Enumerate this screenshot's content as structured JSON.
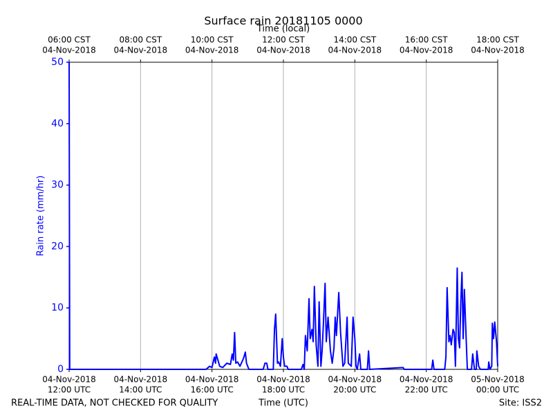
{
  "chart_data": {
    "type": "line",
    "title": "Surface rain 20181105 0000",
    "x_label": "Time (UTC)",
    "x2_label": "Time (local)",
    "y_label": "Rain rate (mm/hr)",
    "annotations": [
      "REAL-TIME DATA, NOT CHECKED FOR QUALITY",
      "Site: ISS2"
    ],
    "color": "#0000ff",
    "axis_color": "#0000ff",
    "grid": true,
    "xlim": [
      "2018-11-04 12:00",
      "2018-11-05 00:00"
    ],
    "ylim": [
      0,
      50
    ],
    "yticks": [
      0,
      10,
      20,
      30,
      40,
      50
    ],
    "xticks": [
      {
        "value": "2018-11-04 12:00",
        "label": [
          "04-Nov-2018",
          "12:00 UTC"
        ]
      },
      {
        "value": "2018-11-04 14:00",
        "label": [
          "04-Nov-2018",
          "14:00 UTC"
        ]
      },
      {
        "value": "2018-11-04 16:00",
        "label": [
          "04-Nov-2018",
          "16:00 UTC"
        ]
      },
      {
        "value": "2018-11-04 18:00",
        "label": [
          "04-Nov-2018",
          "18:00 UTC"
        ]
      },
      {
        "value": "2018-11-04 20:00",
        "label": [
          "04-Nov-2018",
          "20:00 UTC"
        ]
      },
      {
        "value": "2018-11-04 22:00",
        "label": [
          "04-Nov-2018",
          "22:00 UTC"
        ]
      },
      {
        "value": "2018-11-05 00:00",
        "label": [
          "05-Nov-2018",
          "00:00 UTC"
        ]
      }
    ],
    "x2ticks": [
      {
        "value": "2018-11-04 12:00",
        "label": [
          "06:00 CST",
          "04-Nov-2018"
        ]
      },
      {
        "value": "2018-11-04 14:00",
        "label": [
          "08:00 CST",
          "04-Nov-2018"
        ]
      },
      {
        "value": "2018-11-04 16:00",
        "label": [
          "10:00 CST",
          "04-Nov-2018"
        ]
      },
      {
        "value": "2018-11-04 18:00",
        "label": [
          "12:00 CST",
          "04-Nov-2018"
        ]
      },
      {
        "value": "2018-11-04 20:00",
        "label": [
          "14:00 CST",
          "04-Nov-2018"
        ]
      },
      {
        "value": "2018-11-04 22:00",
        "label": [
          "16:00 CST",
          "04-Nov-2018"
        ]
      },
      {
        "value": "2018-11-05 00:00",
        "label": [
          "18:00 CST",
          "04-Nov-2018"
        ]
      }
    ],
    "x": [
      "2018-11-04 12:00",
      "2018-11-04 12:01",
      "2018-11-04 15:50",
      "2018-11-04 15:56",
      "2018-11-04 16:00",
      "2018-11-04 16:04",
      "2018-11-04 16:06",
      "2018-11-04 16:07",
      "2018-11-04 16:10",
      "2018-11-04 16:13",
      "2018-11-04 16:18",
      "2018-11-04 16:25",
      "2018-11-04 16:31",
      "2018-11-04 16:34",
      "2018-11-04 16:36",
      "2018-11-04 16:38",
      "2018-11-04 16:40",
      "2018-11-04 16:43",
      "2018-11-04 16:47",
      "2018-11-04 16:53",
      "2018-11-04 16:56",
      "2018-11-04 16:58",
      "2018-11-04 17:02",
      "2018-11-04 17:26",
      "2018-11-04 17:29",
      "2018-11-04 17:32",
      "2018-11-04 17:34",
      "2018-11-04 17:43",
      "2018-11-04 17:45",
      "2018-11-04 17:47",
      "2018-11-04 17:50",
      "2018-11-04 17:52",
      "2018-11-04 17:55",
      "2018-11-04 17:58",
      "2018-11-04 18:00",
      "2018-11-04 18:02",
      "2018-11-04 18:06",
      "2018-11-04 18:08",
      "2018-11-04 18:30",
      "2018-11-04 18:33",
      "2018-11-04 18:35",
      "2018-11-04 18:37",
      "2018-11-04 18:40",
      "2018-11-04 18:43",
      "2018-11-04 18:45",
      "2018-11-04 18:48",
      "2018-11-04 18:50",
      "2018-11-04 18:52",
      "2018-11-04 18:55",
      "2018-11-04 18:58",
      "2018-11-04 19:00",
      "2018-11-04 19:03",
      "2018-11-04 19:05",
      "2018-11-04 19:07",
      "2018-11-04 19:10",
      "2018-11-04 19:12",
      "2018-11-04 19:15",
      "2018-11-04 19:19",
      "2018-11-04 19:22",
      "2018-11-04 19:25",
      "2018-11-04 19:27",
      "2018-11-04 19:29",
      "2018-11-04 19:33",
      "2018-11-04 19:36",
      "2018-11-04 19:40",
      "2018-11-04 19:43",
      "2018-11-04 19:47",
      "2018-11-04 19:49",
      "2018-11-04 19:54",
      "2018-11-04 19:57",
      "2018-11-04 20:00",
      "2018-11-04 20:02",
      "2018-11-04 20:04",
      "2018-11-04 20:08",
      "2018-11-04 20:10",
      "2018-11-04 20:21",
      "2018-11-04 20:23",
      "2018-11-04 20:25",
      "2018-11-04 21:21",
      "2018-11-04 21:23",
      "2018-11-04 22:09",
      "2018-11-04 22:11",
      "2018-11-04 22:13",
      "2018-11-04 22:31",
      "2018-11-04 22:33",
      "2018-11-04 22:35",
      "2018-11-04 22:38",
      "2018-11-04 22:40",
      "2018-11-04 22:42",
      "2018-11-04 22:45",
      "2018-11-04 22:47",
      "2018-11-04 22:49",
      "2018-11-04 22:52",
      "2018-11-04 22:54",
      "2018-11-04 22:56",
      "2018-11-04 22:58",
      "2018-11-04 23:00",
      "2018-11-04 23:02",
      "2018-11-04 23:04",
      "2018-11-04 23:07",
      "2018-11-04 23:09",
      "2018-11-04 23:16",
      "2018-11-04 23:18",
      "2018-11-04 23:21",
      "2018-11-04 23:24",
      "2018-11-04 23:25",
      "2018-11-04 23:28",
      "2018-11-04 23:31",
      "2018-11-04 23:44",
      "2018-11-04 23:45",
      "2018-11-04 23:47",
      "2018-11-04 23:50",
      "2018-11-04 23:51",
      "2018-11-04 23:53",
      "2018-11-04 23:55",
      "2018-11-04 23:58",
      "2018-11-05 00:00"
    ],
    "values": [
      50,
      0,
      0,
      0.5,
      0.3,
      2,
      1,
      2.5,
      1.5,
      0.5,
      0.3,
      1,
      0.8,
      2.5,
      1.5,
      6,
      1,
      1.2,
      0.5,
      1.8,
      2.8,
      1,
      0,
      0,
      1,
      1,
      0,
      0,
      6.5,
      9,
      1,
      1.2,
      0.5,
      5,
      2,
      0.5,
      0.5,
      0,
      0,
      0.8,
      0,
      5.5,
      3,
      11.5,
      5,
      6.5,
      4.5,
      13.5,
      4,
      0.5,
      11,
      0.5,
      3,
      7,
      14,
      4.5,
      8.5,
      3,
      1,
      3.5,
      8.5,
      5.5,
      12.5,
      6,
      0.5,
      1,
      8.5,
      1,
      0.5,
      8.5,
      5,
      0.5,
      0,
      2.5,
      0,
      0,
      3,
      0,
      0.3,
      0,
      0,
      1.5,
      0,
      0,
      2,
      13.3,
      4.5,
      5.5,
      4,
      6.5,
      6,
      0.5,
      16.5,
      5,
      3.5,
      11,
      15.8,
      5,
      13,
      5,
      0,
      0,
      2.5,
      0,
      0,
      3,
      0.5,
      0,
      0,
      1.2,
      0,
      0.5,
      7.5,
      5,
      7.7,
      4.5,
      0.5
    ]
  }
}
